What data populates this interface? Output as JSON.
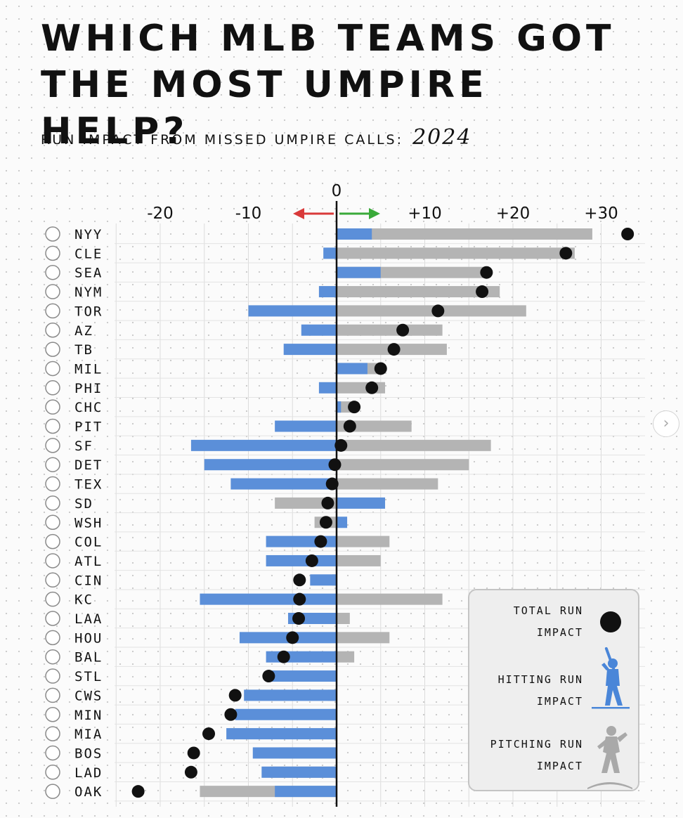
{
  "title": "WHICH MLB TEAMS GOT THE MOST UMPIRE HELP?",
  "subtitle": "RUN IMPACT FROM MISSED UMPIRE CALLS:",
  "year": "2024",
  "legend": {
    "total": "TOTAL RUN IMPACT",
    "hitting": "HITTING RUN IMPACT",
    "pitching": "PITCHING RUN IMPACT"
  },
  "colors": {
    "hitting": "#5b8fd9",
    "pitching": "#b4b4b4",
    "total": "#111111",
    "left_arrow": "#d93a3a",
    "right_arrow": "#3aaa3a"
  },
  "chart_data": {
    "type": "bar",
    "orientation": "horizontal",
    "xlim": [
      -23,
      33
    ],
    "x_ticks": [
      "-20",
      "-10",
      "0",
      "+10",
      "+20",
      "+30"
    ],
    "x_tick_values": [
      -20,
      -10,
      0,
      10,
      20,
      30
    ],
    "categories": [
      "NYY",
      "CLE",
      "SEA",
      "NYM",
      "TOR",
      "AZ",
      "TB",
      "MIL",
      "PHI",
      "CHC",
      "PIT",
      "SF",
      "DET",
      "TEX",
      "SD",
      "WSH",
      "COL",
      "ATL",
      "CIN",
      "KC",
      "LAA",
      "HOU",
      "BAL",
      "STL",
      "CWS",
      "MIN",
      "MIA",
      "BOS",
      "LAD",
      "OAK"
    ],
    "series": [
      {
        "name": "HITTING RUN IMPACT",
        "values": [
          4,
          -1.5,
          5,
          -2,
          -10,
          -4,
          -6,
          3.5,
          -2,
          0.5,
          -7,
          -16.5,
          -15,
          -12,
          5.5,
          1.2,
          -8,
          -8,
          -3,
          -15.5,
          -5.5,
          -11,
          -8,
          -7.5,
          -10.5,
          -11.5,
          -12.5,
          -9.5,
          -8.5,
          -7
        ]
      },
      {
        "name": "PITCHING RUN IMPACT",
        "values": [
          29,
          27,
          17,
          18.5,
          21.5,
          12,
          12.5,
          5,
          5.5,
          2,
          8.5,
          17.5,
          15,
          11.5,
          -7,
          -2.5,
          6,
          5,
          -0.5,
          12,
          1.5,
          6,
          2,
          0,
          -1,
          -0.5,
          -1.5,
          -6.5,
          -7.5,
          -15.5
        ]
      },
      {
        "name": "TOTAL RUN IMPACT",
        "values": [
          33,
          26,
          17,
          16.5,
          11.5,
          7.5,
          6.5,
          5,
          4,
          2,
          1.5,
          0.5,
          -0.2,
          -0.5,
          -1,
          -1.2,
          -1.8,
          -2.8,
          -4.2,
          -4.2,
          -4.3,
          -5,
          -6,
          -7.7,
          -11.5,
          -12,
          -14.5,
          -16.2,
          -16.5,
          -22.5
        ]
      }
    ]
  }
}
